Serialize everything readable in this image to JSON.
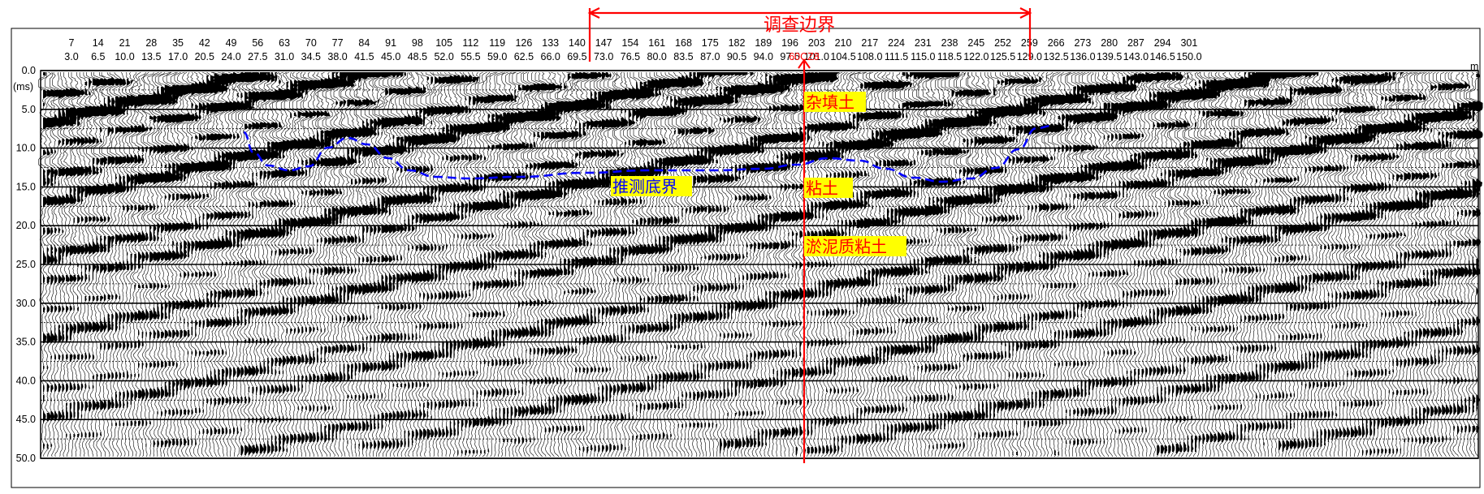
{
  "title": "调查边界",
  "marker_label": "60CZ8",
  "unit_top": "m",
  "unit_left": "(ms)",
  "top_ticks": [
    "7",
    "14",
    "21",
    "28",
    "35",
    "42",
    "49",
    "56",
    "63",
    "70",
    "77",
    "84",
    "91",
    "98",
    "105",
    "112",
    "119",
    "126",
    "133",
    "140",
    "147",
    "154",
    "161",
    "168",
    "175",
    "182",
    "189",
    "196",
    "203",
    "210",
    "217",
    "224",
    "231",
    "238",
    "245",
    "252",
    "259",
    "266",
    "273",
    "280",
    "287",
    "294",
    "301"
  ],
  "bottom_ticks": [
    "3.0",
    "6.5",
    "10.0",
    "13.5",
    "17.0",
    "20.5",
    "24.0",
    "27.5",
    "31.0",
    "34.5",
    "38.0",
    "41.5",
    "45.0",
    "48.5",
    "52.0",
    "55.5",
    "59.0",
    "62.5",
    "66.0",
    "69.5",
    "73.0",
    "76.5",
    "80.0",
    "83.5",
    "87.0",
    "90.5",
    "94.0",
    "97.5",
    "101.0",
    "104.5",
    "108.0",
    "111.5",
    "115.0",
    "118.5",
    "122.0",
    "125.5",
    "129.0",
    "132.5",
    "136.0",
    "139.5",
    "143.0",
    "146.5",
    "150.0"
  ],
  "y_ticks": [
    "0.0",
    "5.0",
    "10.0",
    "15.0",
    "20.0",
    "25.0",
    "30.0",
    "35.0",
    "40.0",
    "45.0",
    "50.0"
  ],
  "layers": [
    {
      "label": "杂填土"
    },
    {
      "label": "粘土"
    },
    {
      "label": "淤泥质粘土"
    }
  ],
  "boundary_label": "推测底界",
  "colors": {
    "red": "#ff0000",
    "blue": "#0000ff",
    "label_bg": "#ffff00",
    "layer_text": "#ff0000",
    "boundary_text": "#0000ff",
    "ink": "#000000"
  }
}
